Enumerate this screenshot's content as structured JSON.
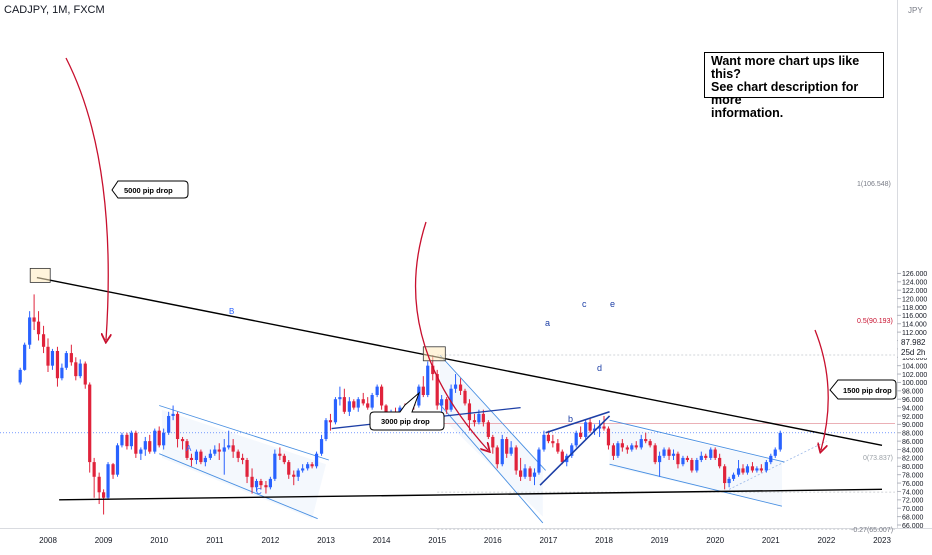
{
  "header": {
    "symbol": "CADJPY, 1M, FXCM"
  },
  "cta": {
    "line1": "Want more chart ups like this?",
    "line2": "See chart description for more",
    "line3": "information."
  },
  "callouts": {
    "drop_5000": "5000 pip drop",
    "drop_3000": "3000 pip drop",
    "drop_1500": "1500 pip drop"
  },
  "wave_labels": {
    "A": "A",
    "B": "B",
    "C": "C",
    "a": "a",
    "b": "b",
    "c": "c",
    "d": "d",
    "e": "e"
  },
  "fib_labels": {
    "f1": "1(106.548)",
    "f05": "0.5(90.193)",
    "f0": "0(73.837)",
    "fneg": "-0.27(65.007)"
  },
  "price_tag": {
    "price": "87.982",
    "countdown": "25d 2h"
  },
  "axis_currency": "JPY",
  "colors": {
    "up": "#2962ff",
    "down": "#e0233b",
    "trendline": "#000000",
    "channel": "#4a90e2",
    "arrow": "#c8102e",
    "fib": "#9aa0a6",
    "wedge": "#1d3fa6"
  },
  "chart_data": {
    "type": "candlestick",
    "symbol": "CADJPY",
    "timeframe": "1M",
    "source": "FXCM",
    "x_axis": {
      "ticks": [
        "2008",
        "2009",
        "2010",
        "2011",
        "2012",
        "2013",
        "2014",
        "2015",
        "2016",
        "2017",
        "2018",
        "2019",
        "2020",
        "2021",
        "2022",
        "2023"
      ]
    },
    "y_axis": {
      "range": [
        65,
        127
      ],
      "ticks": [
        66,
        68,
        70,
        72,
        74,
        76,
        78,
        80,
        82,
        84,
        86,
        88,
        90,
        92,
        94,
        96,
        98,
        100,
        102,
        104,
        106,
        108,
        110,
        112,
        114,
        116,
        118,
        120,
        122,
        124,
        126
      ]
    },
    "last_price": 87.982,
    "fib_levels": [
      {
        "ratio": "1",
        "price": 106.548
      },
      {
        "ratio": "0.5",
        "price": 90.193
      },
      {
        "ratio": "0",
        "price": 73.837
      },
      {
        "ratio": "-0.27",
        "price": 65.007
      }
    ],
    "candles": [
      [
        "2007.50",
        100.0,
        103.5,
        99.5,
        103.0
      ],
      [
        "2007.58",
        103.0,
        109.5,
        102.8,
        109.0
      ],
      [
        "2007.67",
        109.0,
        117.0,
        108.0,
        115.5
      ],
      [
        "2007.75",
        115.5,
        121.0,
        112.5,
        114.5
      ],
      [
        "2007.83",
        114.5,
        117.0,
        110.0,
        111.5
      ],
      [
        "2007.92",
        111.5,
        113.5,
        107.0,
        108.5
      ],
      [
        "2008.00",
        108.5,
        110.5,
        102.5,
        104.0
      ],
      [
        "2008.08",
        104.0,
        108.0,
        103.0,
        107.5
      ],
      [
        "2008.17",
        107.5,
        108.5,
        99.0,
        101.0
      ],
      [
        "2008.25",
        101.0,
        104.5,
        100.5,
        103.5
      ],
      [
        "2008.33",
        103.5,
        107.5,
        103.0,
        107.0
      ],
      [
        "2008.42",
        107.0,
        109.0,
        104.0,
        104.8
      ],
      [
        "2008.50",
        104.8,
        106.0,
        100.5,
        101.5
      ],
      [
        "2008.58",
        101.5,
        105.5,
        101.0,
        104.5
      ],
      [
        "2008.67",
        104.5,
        105.0,
        98.5,
        99.5
      ],
      [
        "2008.75",
        99.5,
        100.0,
        78.5,
        81.0
      ],
      [
        "2008.83",
        81.0,
        82.0,
        72.5,
        77.5
      ],
      [
        "2008.92",
        77.5,
        78.5,
        71.0,
        73.8
      ],
      [
        "2009.00",
        73.8,
        74.5,
        68.5,
        72.5
      ],
      [
        "2009.08",
        72.5,
        81.0,
        72.0,
        80.5
      ],
      [
        "2009.17",
        80.5,
        80.8,
        77.0,
        78.0
      ],
      [
        "2009.25",
        78.0,
        85.5,
        77.5,
        85.0
      ],
      [
        "2009.33",
        85.0,
        88.0,
        84.5,
        87.5
      ],
      [
        "2009.42",
        87.5,
        88.0,
        84.0,
        84.8
      ],
      [
        "2009.50",
        84.8,
        88.5,
        84.0,
        88.0
      ],
      [
        "2009.58",
        88.0,
        88.5,
        82.0,
        83.0
      ],
      [
        "2009.67",
        83.0,
        84.5,
        81.5,
        84.0
      ],
      [
        "2009.75",
        84.0,
        87.0,
        82.5,
        86.0
      ],
      [
        "2009.83",
        86.0,
        87.5,
        83.0,
        83.5
      ],
      [
        "2009.92",
        83.5,
        89.0,
        83.0,
        88.5
      ],
      [
        "2010.00",
        88.5,
        89.5,
        84.5,
        85.0
      ],
      [
        "2010.08",
        85.0,
        89.0,
        84.0,
        88.0
      ],
      [
        "2010.17",
        88.0,
        93.0,
        87.5,
        92.0
      ],
      [
        "2010.25",
        92.0,
        94.5,
        91.0,
        92.5
      ],
      [
        "2010.33",
        92.5,
        93.0,
        84.5,
        86.5
      ],
      [
        "2010.42",
        86.5,
        87.0,
        84.0,
        86.0
      ],
      [
        "2010.50",
        86.0,
        86.5,
        81.5,
        82.0
      ],
      [
        "2010.58",
        82.0,
        83.0,
        80.0,
        81.5
      ],
      [
        "2010.67",
        81.5,
        84.0,
        80.5,
        83.5
      ],
      [
        "2010.75",
        83.5,
        84.0,
        80.5,
        81.0
      ],
      [
        "2010.83",
        81.0,
        82.5,
        80.0,
        82.0
      ],
      [
        "2010.92",
        82.0,
        84.0,
        81.5,
        83.0
      ],
      [
        "2011.00",
        83.0,
        85.0,
        82.5,
        84.0
      ],
      [
        "2011.08",
        84.0,
        85.5,
        81.5,
        83.5
      ],
      [
        "2011.17",
        83.5,
        86.5,
        78.0,
        84.5
      ],
      [
        "2011.25",
        84.5,
        88.5,
        84.0,
        85.0
      ],
      [
        "2011.33",
        85.0,
        86.5,
        82.0,
        83.5
      ],
      [
        "2011.42",
        83.5,
        84.0,
        81.0,
        82.0
      ],
      [
        "2011.50",
        82.0,
        83.0,
        80.5,
        81.5
      ],
      [
        "2011.58",
        81.5,
        82.0,
        76.0,
        77.5
      ],
      [
        "2011.67",
        77.5,
        79.5,
        73.5,
        75.0
      ],
      [
        "2011.75",
        75.0,
        77.0,
        74.0,
        76.5
      ],
      [
        "2011.83",
        76.5,
        77.0,
        74.5,
        75.5
      ],
      [
        "2011.92",
        75.5,
        76.5,
        73.5,
        75.0
      ],
      [
        "2012.00",
        75.0,
        77.5,
        74.5,
        77.0
      ],
      [
        "2012.08",
        77.0,
        84.0,
        76.5,
        83.0
      ],
      [
        "2012.17",
        83.0,
        84.5,
        81.5,
        82.5
      ],
      [
        "2012.25",
        82.5,
        83.0,
        80.5,
        81.0
      ],
      [
        "2012.33",
        81.0,
        81.5,
        77.0,
        78.0
      ],
      [
        "2012.42",
        78.0,
        79.0,
        75.5,
        77.5
      ],
      [
        "2012.50",
        77.5,
        79.5,
        76.5,
        79.0
      ],
      [
        "2012.58",
        79.0,
        80.5,
        78.5,
        79.5
      ],
      [
        "2012.67",
        79.5,
        81.0,
        79.0,
        80.5
      ],
      [
        "2012.75",
        80.5,
        81.0,
        79.5,
        80.0
      ],
      [
        "2012.83",
        80.0,
        83.5,
        79.5,
        83.0
      ],
      [
        "2012.92",
        83.0,
        87.5,
        82.5,
        86.5
      ],
      [
        "2013.00",
        86.5,
        91.5,
        86.0,
        91.0
      ],
      [
        "2013.08",
        91.0,
        92.5,
        88.5,
        90.5
      ],
      [
        "2013.17",
        90.5,
        96.5,
        90.0,
        96.0
      ],
      [
        "2013.25",
        96.0,
        99.0,
        94.5,
        96.5
      ],
      [
        "2013.33",
        96.5,
        98.5,
        92.5,
        93.0
      ],
      [
        "2013.42",
        93.0,
        96.5,
        92.0,
        95.5
      ],
      [
        "2013.50",
        95.5,
        96.0,
        93.5,
        94.0
      ],
      [
        "2013.58",
        94.0,
        96.5,
        93.0,
        96.0
      ],
      [
        "2013.67",
        96.0,
        97.5,
        94.5,
        95.0
      ],
      [
        "2013.75",
        95.0,
        96.5,
        93.5,
        94.0
      ],
      [
        "2013.83",
        94.0,
        97.5,
        93.5,
        97.0
      ],
      [
        "2013.92",
        97.0,
        99.5,
        96.5,
        99.0
      ],
      [
        "2014.00",
        99.0,
        99.5,
        93.5,
        94.5
      ],
      [
        "2014.08",
        94.5,
        94.8,
        91.5,
        92.0
      ],
      [
        "2014.17",
        92.0,
        93.5,
        91.5,
        93.0
      ],
      [
        "2014.25",
        93.0,
        94.0,
        91.5,
        92.5
      ],
      [
        "2014.33",
        92.5,
        94.5,
        92.0,
        94.0
      ],
      [
        "2014.42",
        94.0,
        95.0,
        93.0,
        93.5
      ],
      [
        "2014.50",
        93.5,
        95.5,
        93.0,
        95.0
      ],
      [
        "2014.58",
        95.0,
        95.5,
        93.5,
        94.5
      ],
      [
        "2014.67",
        94.5,
        99.5,
        94.0,
        99.0
      ],
      [
        "2014.75",
        99.0,
        101.5,
        96.5,
        97.0
      ],
      [
        "2014.83",
        97.0,
        105.0,
        96.5,
        104.0
      ],
      [
        "2014.92",
        104.0,
        106.5,
        100.5,
        102.0
      ],
      [
        "2015.00",
        102.0,
        103.0,
        93.5,
        94.5
      ],
      [
        "2015.08",
        94.5,
        97.0,
        93.0,
        96.0
      ],
      [
        "2015.17",
        96.0,
        96.5,
        92.5,
        93.5
      ],
      [
        "2015.25",
        93.5,
        99.5,
        93.0,
        98.5
      ],
      [
        "2015.33",
        98.5,
        102.0,
        97.5,
        99.5
      ],
      [
        "2015.42",
        99.5,
        101.0,
        97.0,
        98.0
      ],
      [
        "2015.50",
        98.0,
        98.5,
        94.5,
        95.0
      ],
      [
        "2015.58",
        95.0,
        96.0,
        88.5,
        91.0
      ],
      [
        "2015.67",
        91.0,
        92.5,
        89.5,
        90.5
      ],
      [
        "2015.75",
        90.5,
        93.5,
        90.0,
        92.5
      ],
      [
        "2015.83",
        92.5,
        93.5,
        89.5,
        90.5
      ],
      [
        "2015.92",
        90.5,
        91.0,
        86.5,
        87.0
      ],
      [
        "2016.00",
        87.0,
        87.5,
        83.0,
        84.5
      ],
      [
        "2016.08",
        84.5,
        85.0,
        79.5,
        80.5
      ],
      [
        "2016.17",
        80.5,
        87.5,
        80.0,
        86.5
      ],
      [
        "2016.25",
        86.5,
        87.0,
        82.0,
        83.0
      ],
      [
        "2016.33",
        83.0,
        86.0,
        82.5,
        84.5
      ],
      [
        "2016.42",
        84.5,
        85.0,
        78.0,
        79.0
      ],
      [
        "2016.50",
        79.0,
        82.0,
        76.5,
        77.5
      ],
      [
        "2016.58",
        77.5,
        80.5,
        77.0,
        79.5
      ],
      [
        "2016.67",
        79.5,
        80.0,
        76.5,
        77.5
      ],
      [
        "2016.75",
        77.5,
        79.5,
        75.5,
        78.5
      ],
      [
        "2016.83",
        78.5,
        84.5,
        78.0,
        84.0
      ],
      [
        "2016.92",
        84.0,
        88.5,
        83.5,
        87.5
      ],
      [
        "2017.00",
        87.5,
        88.5,
        85.5,
        86.0
      ],
      [
        "2017.08",
        86.0,
        87.5,
        84.5,
        85.5
      ],
      [
        "2017.17",
        85.5,
        86.5,
        83.0,
        83.5
      ],
      [
        "2017.25",
        83.5,
        84.0,
        80.5,
        81.0
      ],
      [
        "2017.33",
        81.0,
        83.0,
        80.0,
        82.5
      ],
      [
        "2017.42",
        82.5,
        85.5,
        82.0,
        85.0
      ],
      [
        "2017.50",
        85.0,
        88.5,
        84.5,
        88.0
      ],
      [
        "2017.58",
        88.0,
        89.5,
        86.5,
        87.0
      ],
      [
        "2017.67",
        87.0,
        91.0,
        86.5,
        90.5
      ],
      [
        "2017.75",
        90.5,
        91.5,
        88.0,
        88.5
      ],
      [
        "2017.83",
        88.5,
        90.0,
        87.5,
        89.0
      ],
      [
        "2017.92",
        89.0,
        91.0,
        87.0,
        89.5
      ],
      [
        "2018.00",
        89.5,
        92.0,
        88.5,
        89.0
      ],
      [
        "2018.08",
        89.0,
        89.5,
        84.0,
        85.0
      ],
      [
        "2018.17",
        85.0,
        85.5,
        81.5,
        82.5
      ],
      [
        "2018.25",
        82.5,
        86.0,
        82.0,
        85.5
      ],
      [
        "2018.33",
        85.5,
        86.5,
        83.5,
        84.5
      ],
      [
        "2018.42",
        84.5,
        85.0,
        83.0,
        84.0
      ],
      [
        "2018.50",
        84.0,
        85.5,
        83.5,
        85.0
      ],
      [
        "2018.58",
        85.0,
        86.0,
        84.0,
        84.5
      ],
      [
        "2018.67",
        84.5,
        87.5,
        84.0,
        86.5
      ],
      [
        "2018.75",
        86.5,
        88.0,
        85.5,
        86.0
      ],
      [
        "2018.83",
        86.0,
        86.5,
        84.5,
        85.0
      ],
      [
        "2018.92",
        85.0,
        85.5,
        80.5,
        81.0
      ],
      [
        "2019.00",
        81.0,
        83.5,
        77.5,
        82.5
      ],
      [
        "2019.08",
        82.5,
        84.5,
        82.0,
        84.0
      ],
      [
        "2019.17",
        84.0,
        84.5,
        81.5,
        82.5
      ],
      [
        "2019.25",
        82.5,
        84.0,
        81.5,
        83.0
      ],
      [
        "2019.33",
        83.0,
        83.5,
        79.5,
        80.5
      ],
      [
        "2019.42",
        80.5,
        82.5,
        80.0,
        82.0
      ],
      [
        "2019.50",
        82.0,
        82.5,
        81.0,
        81.5
      ],
      [
        "2019.58",
        81.5,
        82.0,
        78.5,
        79.0
      ],
      [
        "2019.67",
        79.0,
        82.0,
        78.5,
        81.5
      ],
      [
        "2019.75",
        81.5,
        83.5,
        81.0,
        82.5
      ],
      [
        "2019.83",
        82.5,
        83.0,
        81.5,
        82.0
      ],
      [
        "2019.92",
        82.0,
        84.5,
        81.5,
        84.0
      ],
      [
        "2020.00",
        84.0,
        84.5,
        81.5,
        82.0
      ],
      [
        "2020.08",
        82.0,
        83.0,
        79.5,
        80.0
      ],
      [
        "2020.17",
        80.0,
        80.5,
        74.5,
        76.0
      ],
      [
        "2020.25",
        76.0,
        77.5,
        75.0,
        77.0
      ],
      [
        "2020.33",
        77.0,
        78.5,
        76.5,
        78.0
      ],
      [
        "2020.42",
        78.0,
        81.5,
        77.5,
        79.5
      ],
      [
        "2020.50",
        79.5,
        80.5,
        78.0,
        78.5
      ],
      [
        "2020.58",
        78.5,
        80.5,
        78.0,
        80.0
      ],
      [
        "2020.67",
        80.0,
        81.0,
        78.5,
        79.0
      ],
      [
        "2020.75",
        79.0,
        80.0,
        78.5,
        79.5
      ],
      [
        "2020.83",
        79.5,
        80.5,
        78.5,
        79.0
      ],
      [
        "2020.92",
        79.0,
        81.5,
        78.5,
        81.0
      ],
      [
        "2021.00",
        81.0,
        83.0,
        80.5,
        82.5
      ],
      [
        "2021.08",
        82.5,
        84.5,
        82.0,
        84.0
      ],
      [
        "2021.17",
        84.0,
        88.5,
        83.5,
        87.98
      ]
    ]
  }
}
